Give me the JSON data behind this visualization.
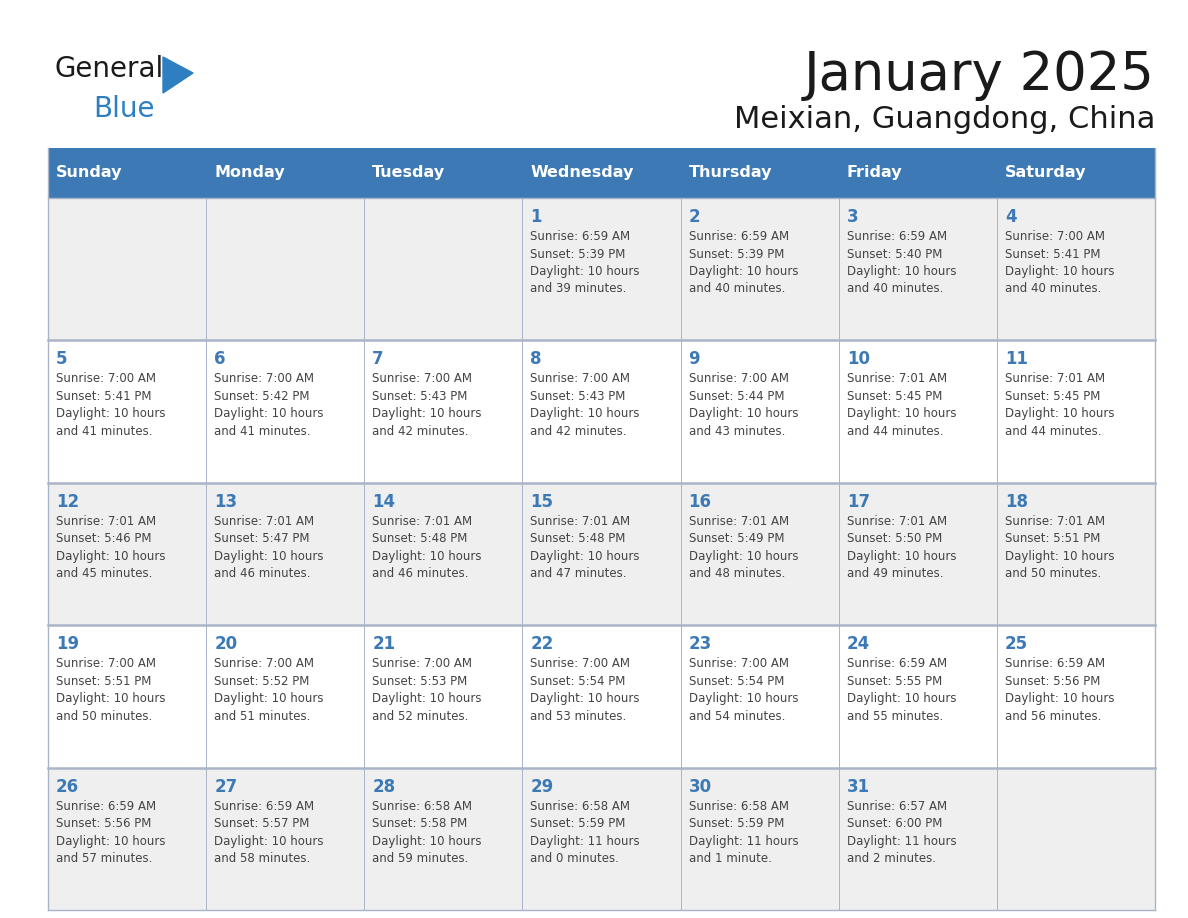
{
  "title": "January 2025",
  "subtitle": "Meixian, Guangdong, China",
  "header_color": "#3d7ab5",
  "header_text_color": "#ffffff",
  "cell_bg_gray": "#efefef",
  "cell_bg_white": "#ffffff",
  "day_number_color": "#3d7ab5",
  "text_color": "#444444",
  "border_color": "#aab4c8",
  "days_of_week": [
    "Sunday",
    "Monday",
    "Tuesday",
    "Wednesday",
    "Thursday",
    "Friday",
    "Saturday"
  ],
  "logo_general_color": "#1a1a1a",
  "logo_blue_color": "#2e7fc1",
  "calendar": [
    [
      {
        "day": null,
        "info": ""
      },
      {
        "day": null,
        "info": ""
      },
      {
        "day": null,
        "info": ""
      },
      {
        "day": 1,
        "info": "Sunrise: 6:59 AM\nSunset: 5:39 PM\nDaylight: 10 hours\nand 39 minutes."
      },
      {
        "day": 2,
        "info": "Sunrise: 6:59 AM\nSunset: 5:39 PM\nDaylight: 10 hours\nand 40 minutes."
      },
      {
        "day": 3,
        "info": "Sunrise: 6:59 AM\nSunset: 5:40 PM\nDaylight: 10 hours\nand 40 minutes."
      },
      {
        "day": 4,
        "info": "Sunrise: 7:00 AM\nSunset: 5:41 PM\nDaylight: 10 hours\nand 40 minutes."
      }
    ],
    [
      {
        "day": 5,
        "info": "Sunrise: 7:00 AM\nSunset: 5:41 PM\nDaylight: 10 hours\nand 41 minutes."
      },
      {
        "day": 6,
        "info": "Sunrise: 7:00 AM\nSunset: 5:42 PM\nDaylight: 10 hours\nand 41 minutes."
      },
      {
        "day": 7,
        "info": "Sunrise: 7:00 AM\nSunset: 5:43 PM\nDaylight: 10 hours\nand 42 minutes."
      },
      {
        "day": 8,
        "info": "Sunrise: 7:00 AM\nSunset: 5:43 PM\nDaylight: 10 hours\nand 42 minutes."
      },
      {
        "day": 9,
        "info": "Sunrise: 7:00 AM\nSunset: 5:44 PM\nDaylight: 10 hours\nand 43 minutes."
      },
      {
        "day": 10,
        "info": "Sunrise: 7:01 AM\nSunset: 5:45 PM\nDaylight: 10 hours\nand 44 minutes."
      },
      {
        "day": 11,
        "info": "Sunrise: 7:01 AM\nSunset: 5:45 PM\nDaylight: 10 hours\nand 44 minutes."
      }
    ],
    [
      {
        "day": 12,
        "info": "Sunrise: 7:01 AM\nSunset: 5:46 PM\nDaylight: 10 hours\nand 45 minutes."
      },
      {
        "day": 13,
        "info": "Sunrise: 7:01 AM\nSunset: 5:47 PM\nDaylight: 10 hours\nand 46 minutes."
      },
      {
        "day": 14,
        "info": "Sunrise: 7:01 AM\nSunset: 5:48 PM\nDaylight: 10 hours\nand 46 minutes."
      },
      {
        "day": 15,
        "info": "Sunrise: 7:01 AM\nSunset: 5:48 PM\nDaylight: 10 hours\nand 47 minutes."
      },
      {
        "day": 16,
        "info": "Sunrise: 7:01 AM\nSunset: 5:49 PM\nDaylight: 10 hours\nand 48 minutes."
      },
      {
        "day": 17,
        "info": "Sunrise: 7:01 AM\nSunset: 5:50 PM\nDaylight: 10 hours\nand 49 minutes."
      },
      {
        "day": 18,
        "info": "Sunrise: 7:01 AM\nSunset: 5:51 PM\nDaylight: 10 hours\nand 50 minutes."
      }
    ],
    [
      {
        "day": 19,
        "info": "Sunrise: 7:00 AM\nSunset: 5:51 PM\nDaylight: 10 hours\nand 50 minutes."
      },
      {
        "day": 20,
        "info": "Sunrise: 7:00 AM\nSunset: 5:52 PM\nDaylight: 10 hours\nand 51 minutes."
      },
      {
        "day": 21,
        "info": "Sunrise: 7:00 AM\nSunset: 5:53 PM\nDaylight: 10 hours\nand 52 minutes."
      },
      {
        "day": 22,
        "info": "Sunrise: 7:00 AM\nSunset: 5:54 PM\nDaylight: 10 hours\nand 53 minutes."
      },
      {
        "day": 23,
        "info": "Sunrise: 7:00 AM\nSunset: 5:54 PM\nDaylight: 10 hours\nand 54 minutes."
      },
      {
        "day": 24,
        "info": "Sunrise: 6:59 AM\nSunset: 5:55 PM\nDaylight: 10 hours\nand 55 minutes."
      },
      {
        "day": 25,
        "info": "Sunrise: 6:59 AM\nSunset: 5:56 PM\nDaylight: 10 hours\nand 56 minutes."
      }
    ],
    [
      {
        "day": 26,
        "info": "Sunrise: 6:59 AM\nSunset: 5:56 PM\nDaylight: 10 hours\nand 57 minutes."
      },
      {
        "day": 27,
        "info": "Sunrise: 6:59 AM\nSunset: 5:57 PM\nDaylight: 10 hours\nand 58 minutes."
      },
      {
        "day": 28,
        "info": "Sunrise: 6:58 AM\nSunset: 5:58 PM\nDaylight: 10 hours\nand 59 minutes."
      },
      {
        "day": 29,
        "info": "Sunrise: 6:58 AM\nSunset: 5:59 PM\nDaylight: 11 hours\nand 0 minutes."
      },
      {
        "day": 30,
        "info": "Sunrise: 6:58 AM\nSunset: 5:59 PM\nDaylight: 11 hours\nand 1 minute."
      },
      {
        "day": 31,
        "info": "Sunrise: 6:57 AM\nSunset: 6:00 PM\nDaylight: 11 hours\nand 2 minutes."
      },
      {
        "day": null,
        "info": ""
      }
    ]
  ]
}
